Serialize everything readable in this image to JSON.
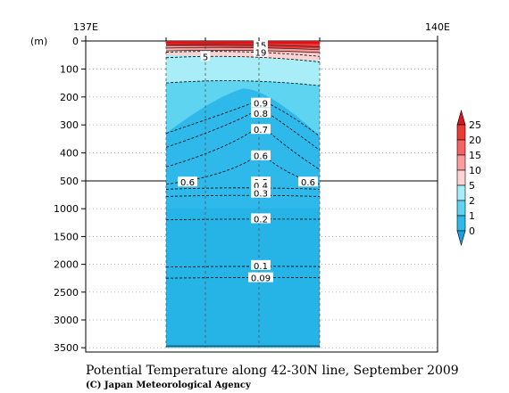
{
  "chart_data": {
    "type": "heatmap",
    "title": "Potential Temperature along 42-30N line, September 2009",
    "credit": "(C) Japan Meteorological Agency",
    "ylabel": "(m)",
    "x_ticks": [
      "137E",
      "140E"
    ],
    "y_ticks_upper": [
      0,
      100,
      200,
      300,
      400,
      500
    ],
    "y_ticks_lower": [
      1000,
      1500,
      2000,
      2500,
      3000,
      3500
    ],
    "colorbar": {
      "labels": [
        "25",
        "20",
        "15",
        "10",
        "5",
        "2",
        "1",
        "0"
      ],
      "colors": [
        "#d8161b",
        "#ec3a36",
        "#f56363",
        "#fa9c9c",
        "#fcd2d2",
        "#a8edf7",
        "#5fd4f0",
        "#2eb9ea",
        "#1d9ede"
      ]
    },
    "contour_labels": [
      {
        "label": "15",
        "depth": 15
      },
      {
        "label": "19",
        "depth": 40
      },
      {
        "label": "5",
        "depth": 55
      },
      {
        "label": "0.9",
        "depth": 222
      },
      {
        "label": "0.8",
        "depth": 258
      },
      {
        "label": "0.7",
        "depth": 316
      },
      {
        "label": "0.6",
        "depth": 410
      },
      {
        "label": "0.6",
        "depth": 520
      },
      {
        "label": "0.6",
        "depth": 520
      },
      {
        "label": "0.5",
        "depth": 520
      },
      {
        "label": "0.4",
        "depth": 580
      },
      {
        "label": "0.3",
        "depth": 720
      },
      {
        "label": "0.2",
        "depth": 1180
      },
      {
        "label": "0.1",
        "depth": 2020
      },
      {
        "label": "0.09",
        "depth": 2240
      }
    ]
  }
}
